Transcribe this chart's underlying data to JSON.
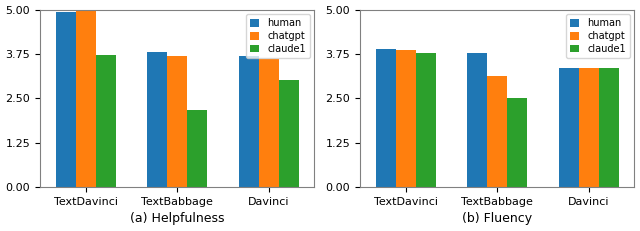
{
  "categories": [
    "TextDavinci",
    "TextBabbage",
    "Davinci"
  ],
  "helpfulness": {
    "human": [
      4.93,
      3.8,
      3.68
    ],
    "chatgpt": [
      4.95,
      3.68,
      3.62
    ],
    "claude1": [
      3.72,
      2.18,
      3.02
    ]
  },
  "fluency": {
    "human": [
      3.9,
      3.77,
      3.35
    ],
    "chatgpt": [
      3.85,
      3.12,
      3.35
    ],
    "claude1": [
      3.78,
      2.52,
      3.35
    ]
  },
  "colors": {
    "human": "#4472C4",
    "chatgpt": "#D2691E",
    "claude1": "#FFA500"
  },
  "ylim": [
    0.0,
    5.0
  ],
  "yticks": [
    0.0,
    1.25,
    2.5,
    3.75,
    5.0
  ],
  "xlabel_helpfulness": "(a) Helpfulness",
  "xlabel_fluency": "(b) Fluency",
  "legend_labels": [
    "human",
    "chatgpt",
    "claude1"
  ],
  "bar_width": 0.22,
  "figsize": [
    6.4,
    2.31
  ],
  "dpi": 100
}
